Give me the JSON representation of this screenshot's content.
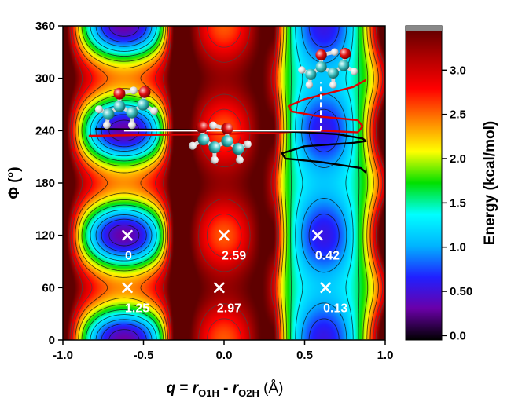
{
  "chart_data": {
    "type": "heatmap",
    "title": "",
    "xlabel": {
      "q": "q",
      "eq": " = ",
      "r1": "r",
      "r1_sub": "O1H",
      "minus": " - ",
      "r2": "r",
      "r2_sub": "O2H",
      "unit": " (Å)"
    },
    "ylabel": "Φ (°)",
    "colorbar_label": "Energy (kcal/mol)",
    "xlim": [
      -1.0,
      1.0
    ],
    "ylim": [
      0,
      360
    ],
    "x_ticks": [
      -1.0,
      -0.5,
      0.0,
      0.5,
      1.0
    ],
    "x_tick_labels": [
      "-1.0",
      "-0.5",
      "0.0",
      "0.5",
      "1.0"
    ],
    "y_ticks": [
      0,
      60,
      120,
      180,
      240,
      300,
      360
    ],
    "y_tick_labels": [
      "0",
      "60",
      "120",
      "180",
      "240",
      "300",
      "360"
    ],
    "colorbar_range": [
      -0.05,
      3.5
    ],
    "colorbar_ticks": [
      0.0,
      0.5,
      1.0,
      1.5,
      2.0,
      2.5,
      3.0
    ],
    "colorbar_tick_labels": [
      "0.0",
      "0.50",
      "1.0",
      "1.5",
      "2.0",
      "2.5",
      "3.0"
    ],
    "colormap": [
      "#000000",
      "#6a00a8",
      "#2020ff",
      "#00b4ff",
      "#00ffff",
      "#00e000",
      "#ffff00",
      "#ff8000",
      "#ff0000",
      "#b00000",
      "#5a0000"
    ],
    "minima": [
      {
        "q": -0.6,
        "phi": 120,
        "label": "0"
      },
      {
        "q": -0.6,
        "phi": 60,
        "label": "1.25"
      },
      {
        "q": 0.0,
        "phi": 120,
        "label": "2.59"
      },
      {
        "q": -0.03,
        "phi": 60,
        "label": "2.97"
      },
      {
        "q": 0.58,
        "phi": 120,
        "label": "0.42"
      },
      {
        "q": 0.63,
        "phi": 60,
        "label": "0.13"
      }
    ],
    "series": [
      {
        "name": "distribution (red)",
        "color": "#e00000",
        "points": [
          [
            -0.84,
            234
          ],
          [
            -0.5,
            235
          ],
          [
            0.0,
            236
          ],
          [
            0.35,
            238
          ],
          [
            0.6,
            240
          ],
          [
            0.83,
            238
          ],
          [
            0.86,
            245
          ],
          [
            0.83,
            252
          ],
          [
            0.6,
            256
          ],
          [
            0.42,
            262
          ],
          [
            0.4,
            268
          ],
          [
            0.5,
            276
          ],
          [
            0.8,
            290
          ],
          [
            0.88,
            298
          ]
        ]
      },
      {
        "name": "distribution (black)",
        "color": "#000000",
        "points": [
          [
            -0.8,
            242
          ],
          [
            -0.4,
            241
          ],
          [
            0.0,
            240
          ],
          [
            0.4,
            239
          ],
          [
            0.7,
            236
          ],
          [
            0.86,
            231
          ],
          [
            0.88,
            228
          ],
          [
            0.8,
            226
          ],
          [
            0.5,
            222
          ],
          [
            0.36,
            214
          ],
          [
            0.38,
            208
          ],
          [
            0.6,
            204
          ],
          [
            0.85,
            197
          ],
          [
            0.88,
            192
          ]
        ]
      },
      {
        "name": "reference path (white)",
        "color": "#ffffff",
        "points": [
          [
            -0.62,
            240
          ],
          [
            0.6,
            240
          ],
          [
            0.6,
            295
          ]
        ]
      }
    ]
  }
}
